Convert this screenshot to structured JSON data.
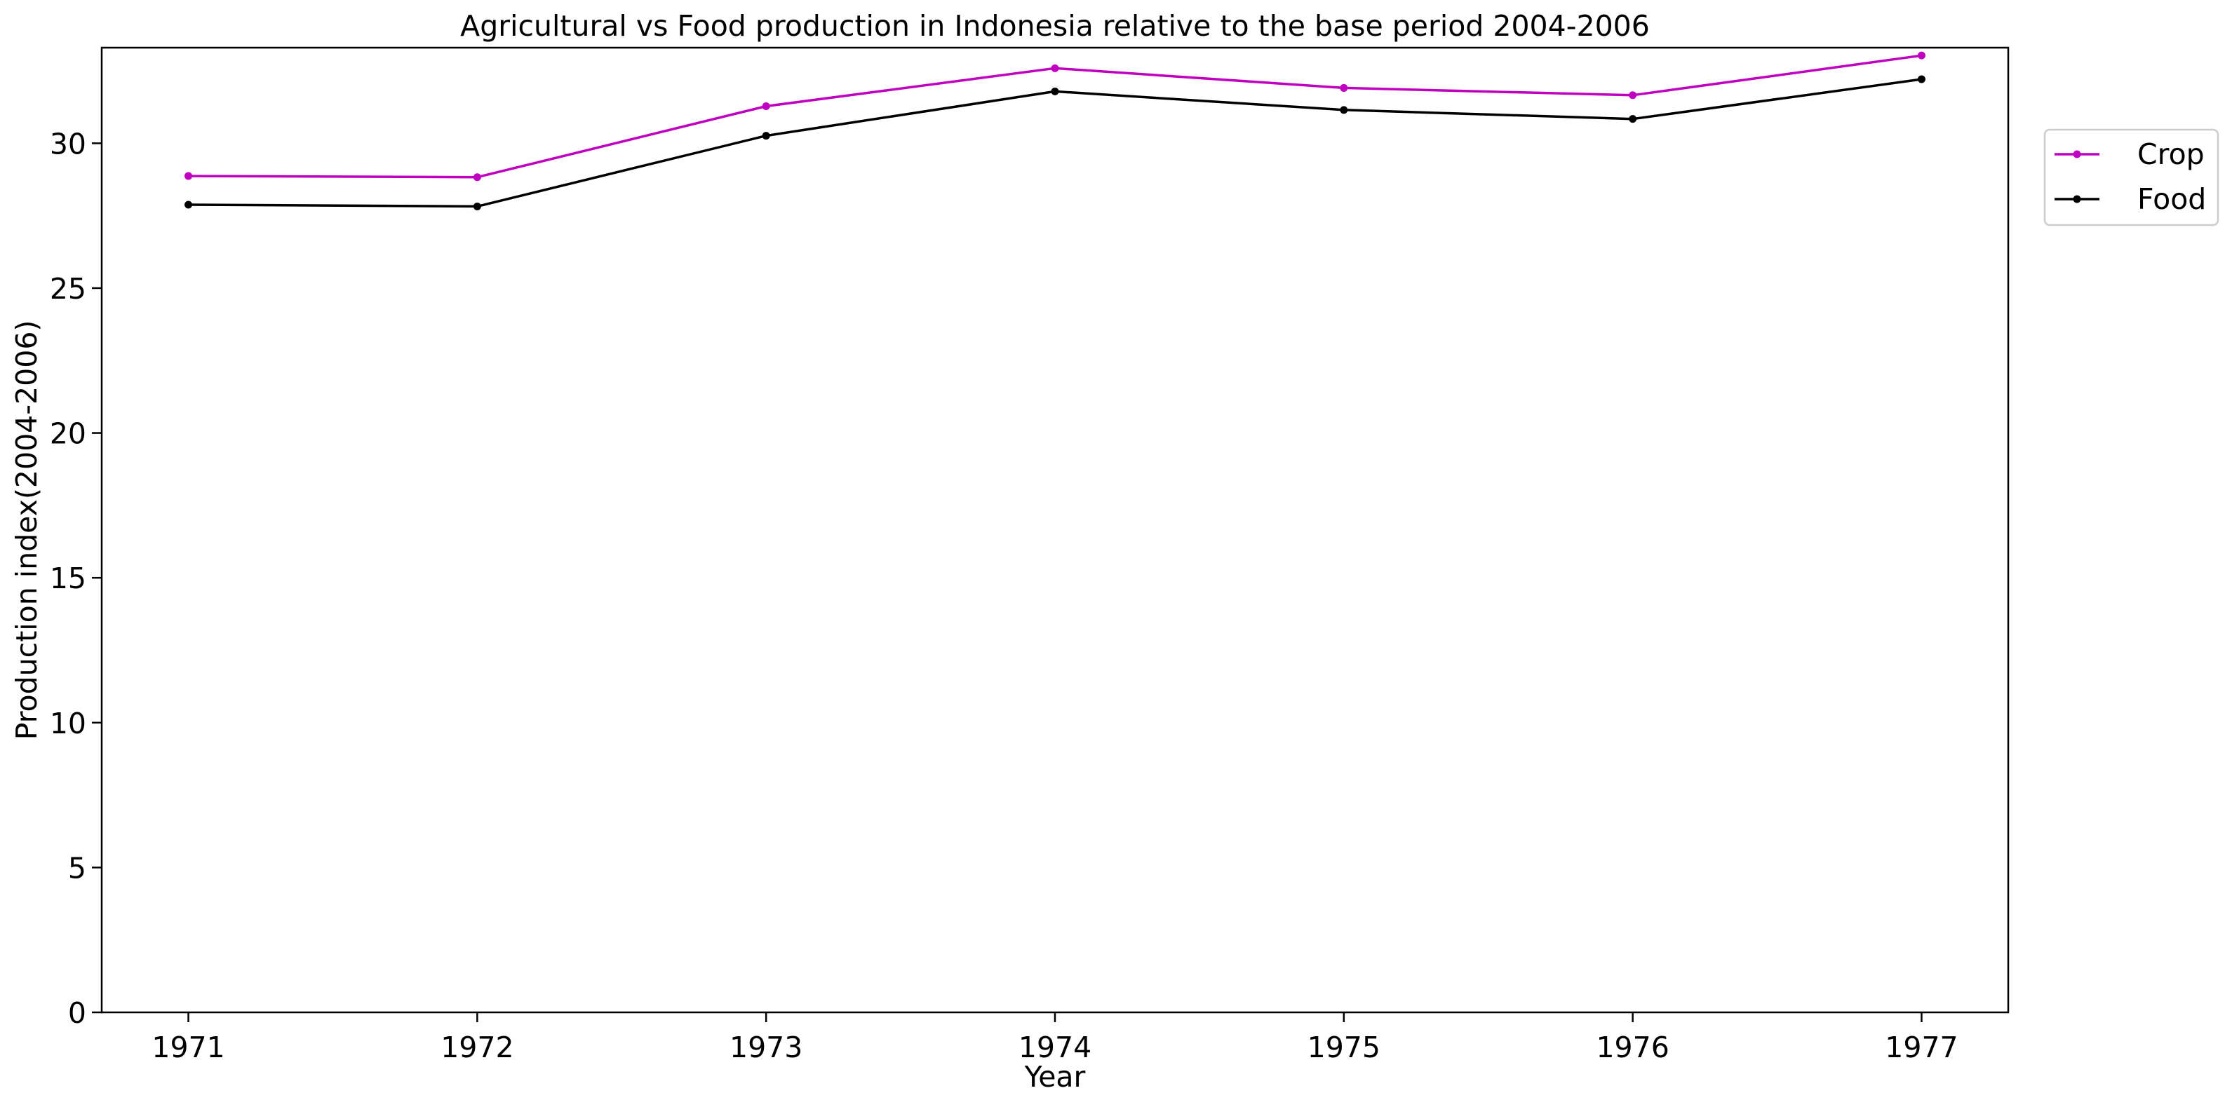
{
  "chart_data": {
    "type": "line",
    "title": "Agricultural vs Food production in Indonesia relative to the base period 2004-2006",
    "xlabel": "Year",
    "ylabel": "Production index(2004-2006)",
    "x": [
      1971,
      1972,
      1973,
      1974,
      1975,
      1976,
      1977
    ],
    "x_tick_labels": [
      "1971",
      "1972",
      "1973",
      "1974",
      "1975",
      "1976",
      "1977"
    ],
    "xlim": [
      1970.7,
      1977.3
    ],
    "ylim": [
      0,
      33.3
    ],
    "y_ticks": [
      0,
      5,
      10,
      15,
      20,
      25,
      30
    ],
    "y_tick_labels": [
      "0",
      "5",
      "10",
      "15",
      "20",
      "25",
      "30"
    ],
    "grid": false,
    "legend_position": "outside right, upper",
    "series": [
      {
        "name": "Crop",
        "color": "#c000c0",
        "values": [
          28.87,
          28.83,
          31.28,
          32.59,
          31.91,
          31.66,
          33.03
        ]
      },
      {
        "name": "Food",
        "color": "#000000",
        "values": [
          27.88,
          27.82,
          30.26,
          31.79,
          31.15,
          30.84,
          32.21
        ]
      }
    ]
  }
}
